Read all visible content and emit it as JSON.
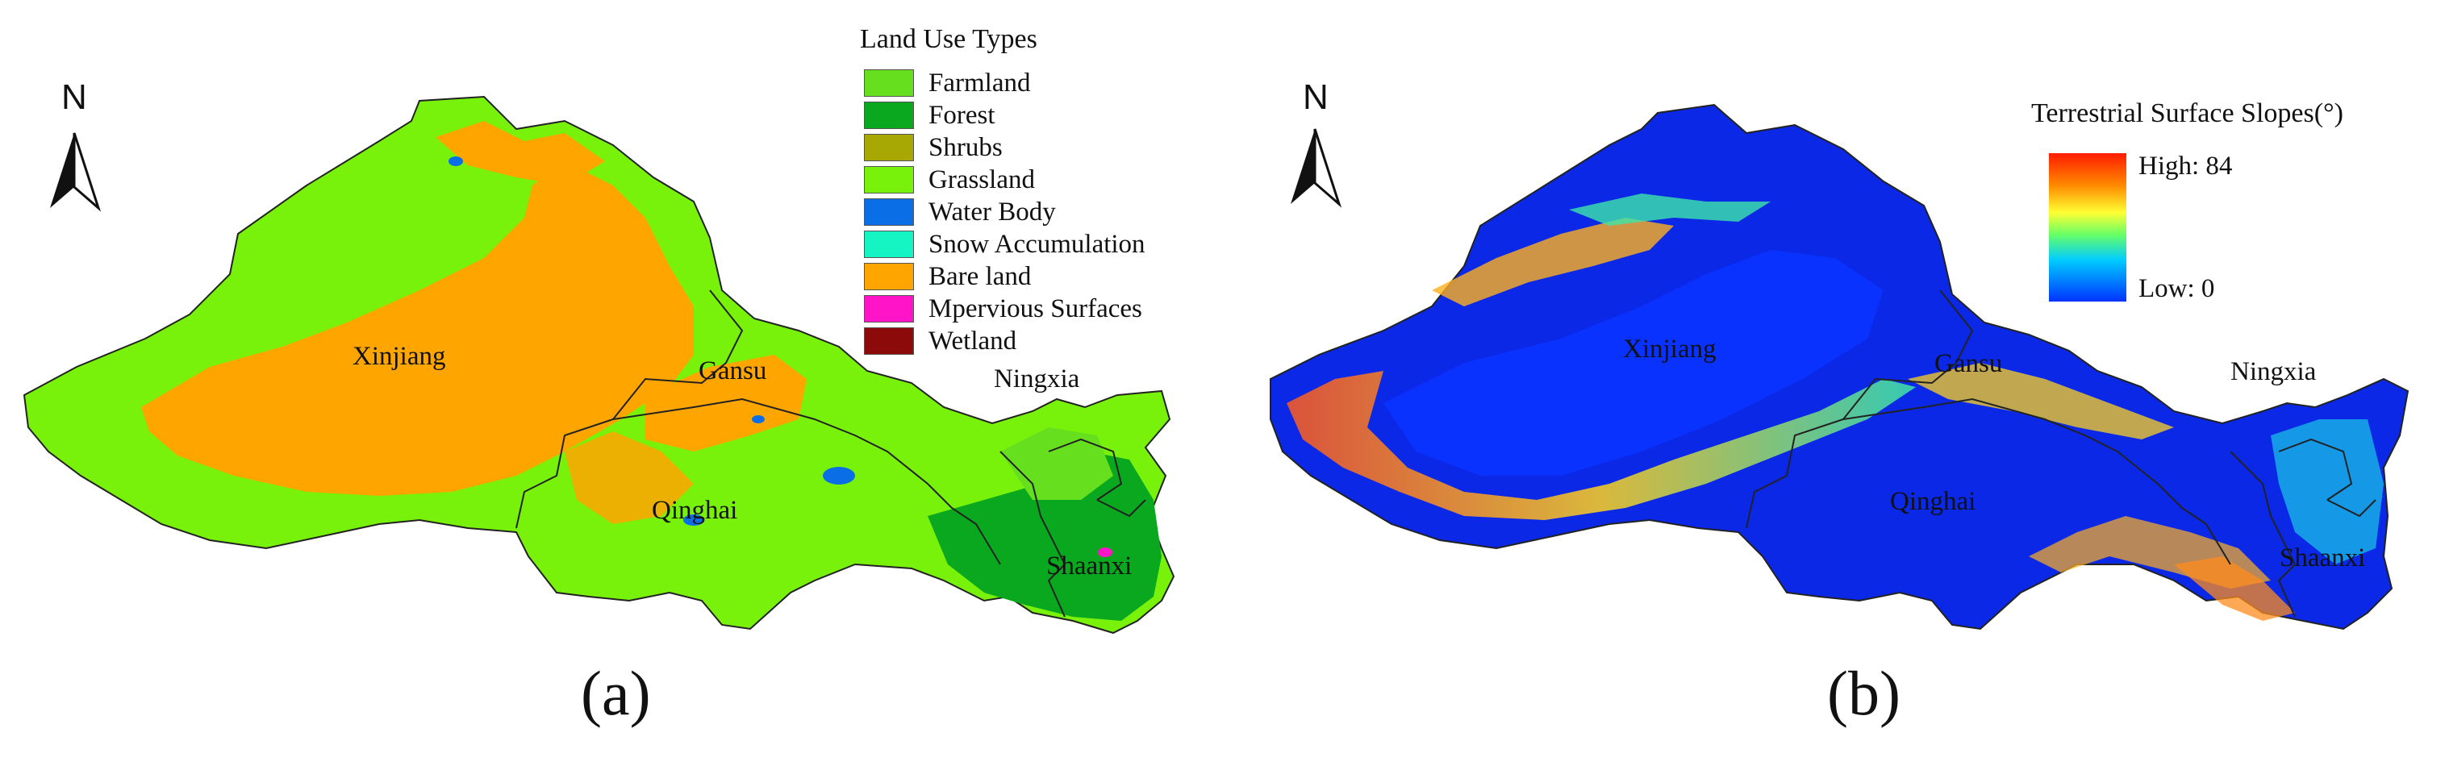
{
  "panel_a": {
    "label": "(a)",
    "legend_title": "Land Use Types",
    "legend_items": [
      {
        "label": "Farmland",
        "color": "#66e01e"
      },
      {
        "label": "Forest",
        "color": "#0aa81e"
      },
      {
        "label": "Shrubs",
        "color": "#a8a805"
      },
      {
        "label": "Grassland",
        "color": "#78f20a"
      },
      {
        "label": "Water Body",
        "color": "#0a6ee6"
      },
      {
        "label": "Snow Accumulation",
        "color": "#14f5c3"
      },
      {
        "label": "Bare land",
        "color": "#ffa500"
      },
      {
        "label": "Mpervious Surfaces",
        "color": "#ff14c8"
      },
      {
        "label": "Wetland",
        "color": "#8c0a0a"
      }
    ],
    "north_label": "N",
    "regions": {
      "xinjiang": "Xinjiang",
      "gansu": "Gansu",
      "ningxia": "Ningxia",
      "qinghai": "Qinghai",
      "shaanxi": "Shaanxi"
    }
  },
  "panel_b": {
    "label": "(b)",
    "legend_title": "Terrestrial Surface Slopes(°)",
    "high_label": "High: 84",
    "low_label": "Low: 0",
    "north_label": "N",
    "regions": {
      "xinjiang": "Xinjiang",
      "gansu": "Gansu",
      "ningxia": "Ningxia",
      "qinghai": "Qinghai",
      "shaanxi": "Shaanxi"
    }
  }
}
